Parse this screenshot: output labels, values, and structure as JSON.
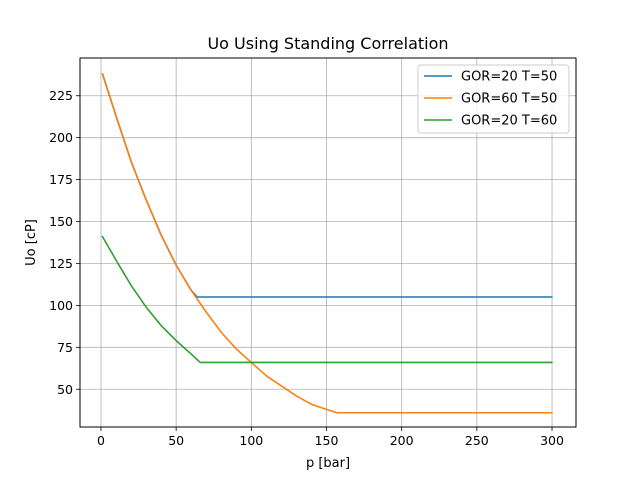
{
  "chart_data": {
    "type": "line",
    "title": "Uo Using Standing Correlation",
    "xlabel": "p [bar]",
    "ylabel": "Uo [cP]",
    "xlim": [
      -13.95,
      315.95
    ],
    "ylim": [
      27.5,
      247.5
    ],
    "xticks": [
      0,
      50,
      100,
      150,
      200,
      250,
      300
    ],
    "yticks": [
      50,
      75,
      100,
      125,
      150,
      175,
      200,
      225
    ],
    "grid": true,
    "legend_position": "top-right",
    "series": [
      {
        "name": "GOR=20 T=50",
        "color": "#1f77b4",
        "points": [
          [
            1,
            238
          ],
          [
            10,
            213
          ],
          [
            20,
            186
          ],
          [
            30,
            163
          ],
          [
            40,
            142
          ],
          [
            50,
            124
          ],
          [
            60,
            109
          ],
          [
            64,
            105
          ],
          [
            100,
            105
          ],
          [
            150,
            105
          ],
          [
            200,
            105
          ],
          [
            250,
            105
          ],
          [
            300,
            105
          ]
        ]
      },
      {
        "name": "GOR=60 T=50",
        "color": "#ff7f0e",
        "points": [
          [
            1,
            238
          ],
          [
            10,
            213
          ],
          [
            20,
            186
          ],
          [
            30,
            163
          ],
          [
            40,
            142
          ],
          [
            50,
            124
          ],
          [
            60,
            109
          ],
          [
            70,
            96
          ],
          [
            80,
            84
          ],
          [
            90,
            74
          ],
          [
            100,
            66
          ],
          [
            110,
            58
          ],
          [
            120,
            52
          ],
          [
            130,
            46
          ],
          [
            140,
            41
          ],
          [
            150,
            38
          ],
          [
            157,
            36
          ],
          [
            200,
            36
          ],
          [
            250,
            36
          ],
          [
            300,
            36
          ]
        ]
      },
      {
        "name": "GOR=20 T=60",
        "color": "#2ca02c",
        "points": [
          [
            1,
            141
          ],
          [
            10,
            127
          ],
          [
            20,
            112
          ],
          [
            30,
            99
          ],
          [
            40,
            88
          ],
          [
            50,
            79
          ],
          [
            60,
            71
          ],
          [
            66,
            66
          ],
          [
            100,
            66
          ],
          [
            150,
            66
          ],
          [
            200,
            66
          ],
          [
            250,
            66
          ],
          [
            300,
            66
          ]
        ]
      }
    ]
  }
}
